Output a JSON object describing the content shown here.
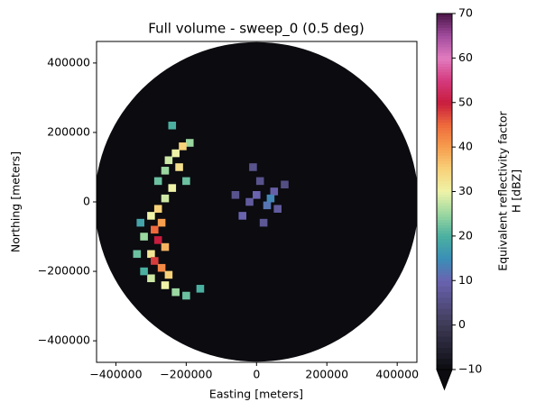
{
  "chart_data": {
    "type": "ppi",
    "title": "Full volume - sweep_0 (0.5 deg)",
    "xlabel": "Easting [meters]",
    "ylabel": "Northing [meters]",
    "xlim": [
      -455000,
      456000
    ],
    "ylim": [
      -462000,
      462000
    ],
    "xticks": [
      {
        "value": -400000,
        "label": "−400000"
      },
      {
        "value": -200000,
        "label": "−200000"
      },
      0,
      200000,
      400000
    ],
    "yticks": [
      {
        "value": -400000,
        "label": "−400000"
      },
      {
        "value": -200000,
        "label": "−200000"
      },
      0,
      200000,
      400000
    ],
    "range": 460000,
    "background_value": -10,
    "x": [
      -190000,
      -210000,
      -230000,
      -250000,
      -220000,
      -260000,
      -200000,
      -240000,
      -260000,
      -280000,
      -300000,
      -270000,
      -290000,
      -320000,
      -280000,
      -260000,
      -300000,
      -290000,
      -270000,
      -250000,
      -300000,
      -260000,
      -230000,
      -200000,
      -320000,
      -340000,
      -330000,
      -160000,
      -240000,
      -280000,
      0,
      30000,
      -20000,
      10000,
      50000,
      -40000,
      20000,
      60000,
      -10000,
      80000,
      40000,
      -60000
    ],
    "y": [
      170000,
      160000,
      140000,
      120000,
      100000,
      90000,
      60000,
      40000,
      10000,
      -20000,
      -40000,
      -60000,
      -80000,
      -100000,
      -110000,
      -130000,
      -150000,
      -170000,
      -190000,
      -210000,
      -220000,
      -240000,
      -260000,
      -270000,
      -200000,
      -150000,
      -60000,
      -250000,
      220000,
      60000,
      20000,
      -10000,
      0,
      60000,
      30000,
      -40000,
      -60000,
      -20000,
      100000,
      50000,
      10000,
      20000
    ],
    "values": [
      25,
      35,
      30,
      28,
      33,
      25,
      22,
      30,
      28,
      35,
      30,
      40,
      45,
      25,
      50,
      38,
      32,
      48,
      42,
      35,
      28,
      30,
      25,
      22,
      20,
      22,
      18,
      20,
      20,
      22,
      10,
      12,
      8,
      6,
      9,
      10,
      7,
      8,
      6,
      5,
      14,
      6
    ],
    "colorbar": {
      "label_lines": [
        "Equivalent reflectivity factor",
        "H [dBZ]"
      ],
      "lim": [
        -10,
        70
      ],
      "ticks": [
        {
          "value": -10,
          "label": "−10"
        },
        0,
        10,
        20,
        30,
        40,
        50,
        60,
        70
      ]
    },
    "colormap": [
      {
        "value": -10,
        "color": "#0b0b10"
      },
      {
        "value": 0,
        "color": "#3d3a55"
      },
      {
        "value": 10,
        "color": "#6a63b0"
      },
      {
        "value": 15,
        "color": "#3a8fb7"
      },
      {
        "value": 20,
        "color": "#4bb0a0"
      },
      {
        "value": 25,
        "color": "#9bd7a0"
      },
      {
        "value": 30,
        "color": "#eef3a8"
      },
      {
        "value": 35,
        "color": "#f8d27a"
      },
      {
        "value": 40,
        "color": "#f79e4f"
      },
      {
        "value": 45,
        "color": "#ee6a3c"
      },
      {
        "value": 50,
        "color": "#c81d3e"
      },
      {
        "value": 55,
        "color": "#d43a7e"
      },
      {
        "value": 60,
        "color": "#e27cbf"
      },
      {
        "value": 65,
        "color": "#a24c9e"
      },
      {
        "value": 70,
        "color": "#4a1648"
      }
    ]
  }
}
